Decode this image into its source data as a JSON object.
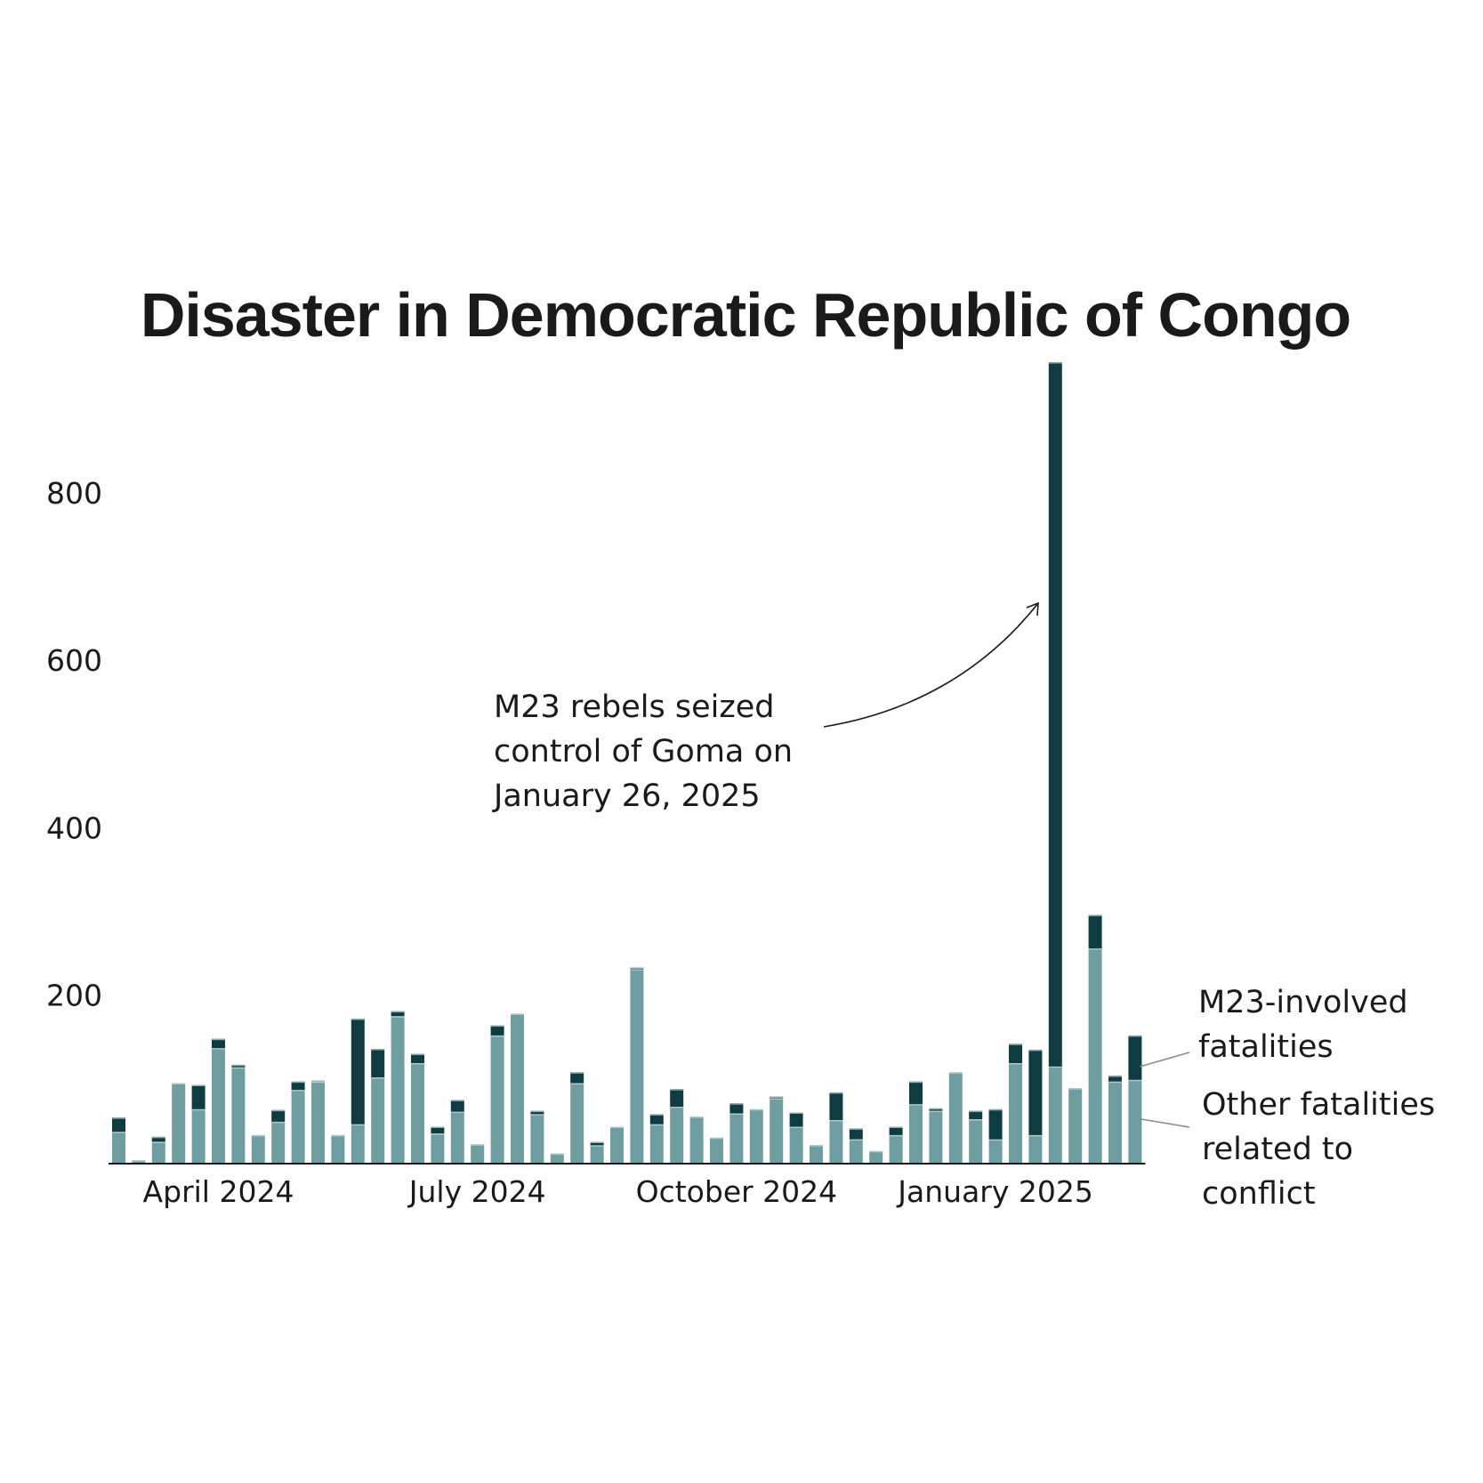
{
  "chart_data": {
    "type": "bar",
    "stacked": true,
    "title": "Disaster in Democratic Republic of Congo",
    "xlabel": "",
    "ylabel": "",
    "ylim": [
      0,
      955
    ],
    "yticks": [
      200,
      400,
      600,
      800
    ],
    "xticks": [
      {
        "label": "April 2024",
        "index": 5
      },
      {
        "label": "July 2024",
        "index": 18
      },
      {
        "label": "October 2024",
        "index": 31
      },
      {
        "label": "January 2025",
        "index": 44
      }
    ],
    "series": [
      {
        "name": "Other fatalities related to conflict",
        "color": "#6e9ea0",
        "values": [
          37,
          3,
          25,
          95,
          64,
          137,
          114,
          33,
          49,
          87,
          97,
          33,
          46,
          102,
          175,
          119,
          35,
          61,
          22,
          152,
          178,
          58,
          11,
          95,
          21,
          43,
          231,
          46,
          67,
          55,
          30,
          59,
          64,
          77,
          43,
          21,
          51,
          28,
          14,
          33,
          70,
          62,
          108,
          52,
          28,
          119,
          33,
          115,
          89,
          256,
          97,
          99
        ]
      },
      {
        "name": "M23-involved fatalities",
        "color": "#0f3c40",
        "values": [
          17,
          0,
          6,
          0,
          29,
          11,
          3,
          0,
          14,
          10,
          1,
          0,
          126,
          34,
          6,
          11,
          8,
          14,
          0,
          12,
          0,
          4,
          0,
          13,
          4,
          0,
          2,
          12,
          21,
          0,
          0,
          12,
          0,
          2,
          17,
          0,
          33,
          13,
          0,
          10,
          27,
          3,
          0,
          10,
          36,
          23,
          102,
          841,
          0,
          40,
          7,
          53
        ]
      }
    ],
    "annotations": [
      {
        "id": "goma",
        "text": [
          "M23 rebels seized",
          "control of Goma on",
          "January 26, 2025"
        ]
      }
    ],
    "legend": [
      {
        "series": "M23-involved fatalities",
        "text": [
          "M23-involved",
          "fatalities"
        ]
      },
      {
        "series": "Other fatalities related to conflict",
        "text": [
          "Other fatalities",
          "related to",
          "conflict"
        ]
      }
    ]
  },
  "colors": {
    "other": "#6e9ea0",
    "m23": "#0f3c40",
    "text": "#1a1a1a",
    "axis": "#1a1a1a",
    "leader": "#8a8a8a"
  }
}
